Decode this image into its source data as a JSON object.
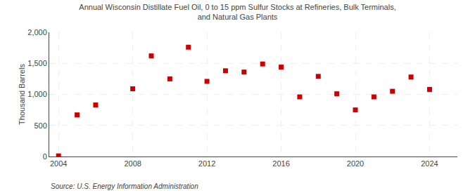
{
  "chart_data": {
    "type": "scatter",
    "title": "Annual Wisconsin Distillate Fuel Oil, 0 to 15 ppm Sulfur Stocks at Refineries, Bulk Terminals,\nand Natural Gas Plants",
    "ylabel": "Thousand Barrels",
    "annotations": [
      "Source: U.S. Energy Information Administration"
    ],
    "x": [
      2004,
      2005,
      2006,
      2007,
      2008,
      2009,
      2010,
      2011,
      2012,
      2013,
      2014,
      2015,
      2016,
      2017,
      2018,
      2019,
      2020,
      2021,
      2022,
      2023,
      2024
    ],
    "values": [
      10,
      670,
      830,
      null,
      1090,
      1620,
      1250,
      1760,
      1210,
      1380,
      1360,
      1490,
      1440,
      960,
      1290,
      1010,
      750,
      960,
      1050,
      1280,
      1080
    ],
    "color": "#cc0000",
    "marker": "square",
    "xlim": [
      2003.5,
      2025.5
    ],
    "xticks": [
      2004,
      2008,
      2012,
      2016,
      2020,
      2024
    ],
    "ylim": [
      0,
      2000
    ],
    "yticks": [
      0,
      500,
      {
        "value": 1000,
        "label": "1,000"
      },
      {
        "value": 1500,
        "label": "1,500"
      },
      {
        "value": 2000,
        "label": "2,000"
      }
    ],
    "grid": true
  }
}
